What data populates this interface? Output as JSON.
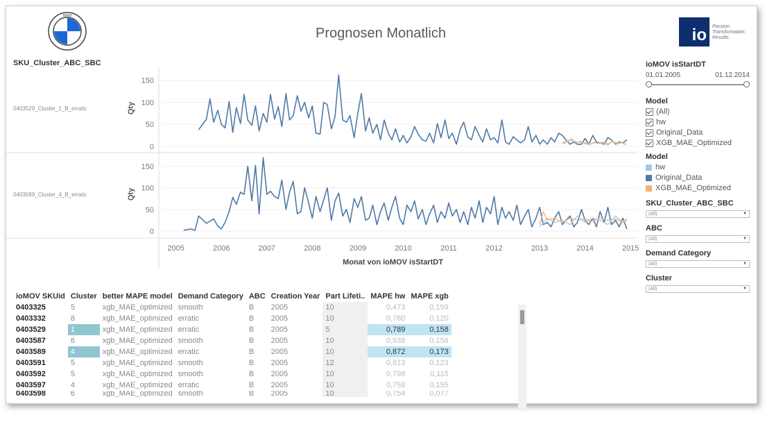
{
  "header": {
    "title": "Prognosen Monatlich"
  },
  "logos": {
    "bmw": "BMW",
    "io": "io",
    "io_tagline": [
      "Passion.",
      "Transformation.",
      "Results."
    ]
  },
  "chart_section": {
    "dimension_header": "SKU_Cluster_ABC_SBC",
    "ylabel": "Qty",
    "xlabel": "Monat von ioMOV isStartDT",
    "x_ticks": [
      "2005",
      "2006",
      "2007",
      "2008",
      "2009",
      "2010",
      "2011",
      "2012",
      "2013",
      "2014",
      "2015"
    ],
    "y_ticks": [
      "150",
      "100",
      "50",
      "0"
    ]
  },
  "chart_data": [
    {
      "type": "line",
      "row_label": "0403529_Cluster_1_B_erratic",
      "xlabel": "Monat von ioMOV isStartDT",
      "ylabel": "Qty",
      "ylim": [
        0,
        170
      ],
      "series": [
        {
          "name": "Original_Data",
          "color": "#4e79a7",
          "x": [
            2005.5,
            2005.67,
            2005.75,
            2005.83,
            2005.92,
            2006.0,
            2006.08,
            2006.17,
            2006.25,
            2006.33,
            2006.42,
            2006.5,
            2006.58,
            2006.67,
            2006.75,
            2006.83,
            2006.92,
            2007.0,
            2007.08,
            2007.17,
            2007.25,
            2007.33,
            2007.42,
            2007.5,
            2007.58,
            2007.67,
            2007.75,
            2007.83,
            2007.92,
            2008.0,
            2008.08,
            2008.17,
            2008.25,
            2008.33,
            2008.42,
            2008.5,
            2008.58,
            2008.67,
            2008.75,
            2008.83,
            2008.92,
            2009.0,
            2009.08,
            2009.17,
            2009.25,
            2009.33,
            2009.42,
            2009.5,
            2009.58,
            2009.67,
            2009.75,
            2009.83,
            2009.92,
            2010.0,
            2010.08,
            2010.17,
            2010.25,
            2010.33,
            2010.42,
            2010.5,
            2010.58,
            2010.67,
            2010.75,
            2010.83,
            2010.92,
            2011.0,
            2011.08,
            2011.17,
            2011.25,
            2011.33,
            2011.42,
            2011.5,
            2011.58,
            2011.67,
            2011.75,
            2011.83,
            2011.92,
            2012.0,
            2012.08,
            2012.17,
            2012.25,
            2012.33,
            2012.42,
            2012.5,
            2012.58,
            2012.67,
            2012.75,
            2012.83,
            2012.92,
            2013.0,
            2013.08,
            2013.17,
            2013.25,
            2013.33,
            2013.42,
            2013.5,
            2013.58,
            2013.67,
            2013.75,
            2013.83,
            2013.92,
            2014.0,
            2014.08,
            2014.17,
            2014.25,
            2014.33,
            2014.42,
            2014.5,
            2014.58,
            2014.67,
            2014.75,
            2014.83,
            2014.92
          ],
          "values": [
            38,
            62,
            108,
            55,
            82,
            50,
            42,
            102,
            32,
            88,
            52,
            118,
            60,
            48,
            92,
            35,
            75,
            55,
            118,
            62,
            90,
            45,
            120,
            60,
            70,
            115,
            80,
            100,
            65,
            92,
            30,
            28,
            100,
            95,
            40,
            68,
            162,
            60,
            55,
            70,
            20,
            75,
            120,
            35,
            65,
            30,
            50,
            15,
            60,
            30,
            15,
            40,
            10,
            25,
            8,
            22,
            45,
            28,
            15,
            12,
            30,
            8,
            52,
            20,
            60,
            18,
            30,
            5,
            38,
            55,
            22,
            15,
            45,
            25,
            10,
            40,
            15,
            20,
            8,
            60,
            10,
            5,
            22,
            15,
            8,
            15,
            45,
            10,
            25,
            5,
            15,
            5,
            20,
            10,
            30,
            25,
            15,
            5,
            10,
            5,
            5,
            18,
            5,
            25,
            10,
            8,
            5,
            20,
            15,
            5,
            10,
            8,
            15
          ]
        },
        {
          "name": "hw",
          "color": "#a0cbe8",
          "x": [
            2013.5,
            2013.6,
            2013.7,
            2013.8,
            2013.9,
            2014.0,
            2014.1,
            2014.2,
            2014.3,
            2014.4,
            2014.5,
            2014.6,
            2014.7,
            2014.8,
            2014.9
          ],
          "values": [
            5,
            10,
            18,
            8,
            12,
            6,
            4,
            10,
            6,
            8,
            3,
            12,
            5,
            9,
            4
          ]
        },
        {
          "name": "XGB_MAE_Optimized",
          "color": "#f5b06b",
          "x": [
            2013.5,
            2013.6,
            2013.7,
            2013.8,
            2013.9,
            2014.0,
            2014.1,
            2014.2,
            2014.3,
            2014.4,
            2014.5,
            2014.6,
            2014.7,
            2014.8,
            2014.9
          ],
          "values": [
            8,
            12,
            15,
            10,
            10,
            8,
            6,
            8,
            8,
            10,
            6,
            10,
            8,
            8,
            6
          ]
        }
      ]
    },
    {
      "type": "line",
      "row_label": "0403589_Cluster_4_B_erratic",
      "xlabel": "Monat von ioMOV isStartDT",
      "ylabel": "Qty",
      "ylim": [
        0,
        170
      ],
      "series": [
        {
          "name": "Original_Data",
          "color": "#4e79a7",
          "x": [
            2005.17,
            2005.33,
            2005.42,
            2005.5,
            2005.67,
            2005.83,
            2005.92,
            2006.0,
            2006.08,
            2006.17,
            2006.25,
            2006.33,
            2006.42,
            2006.5,
            2006.58,
            2006.67,
            2006.75,
            2006.83,
            2006.92,
            2007.0,
            2007.08,
            2007.17,
            2007.25,
            2007.33,
            2007.42,
            2007.5,
            2007.58,
            2007.67,
            2007.75,
            2007.83,
            2007.92,
            2008.0,
            2008.08,
            2008.17,
            2008.25,
            2008.33,
            2008.42,
            2008.5,
            2008.58,
            2008.67,
            2008.75,
            2008.83,
            2008.92,
            2009.0,
            2009.08,
            2009.17,
            2009.25,
            2009.33,
            2009.42,
            2009.5,
            2009.58,
            2009.67,
            2009.75,
            2009.83,
            2009.92,
            2010.0,
            2010.08,
            2010.17,
            2010.25,
            2010.33,
            2010.42,
            2010.5,
            2010.58,
            2010.67,
            2010.75,
            2010.83,
            2010.92,
            2011.0,
            2011.08,
            2011.17,
            2011.25,
            2011.33,
            2011.42,
            2011.5,
            2011.58,
            2011.67,
            2011.75,
            2011.83,
            2011.92,
            2012.0,
            2012.08,
            2012.17,
            2012.25,
            2012.33,
            2012.42,
            2012.5,
            2012.58,
            2012.67,
            2012.75,
            2012.83,
            2012.92,
            2013.0,
            2013.08,
            2013.17,
            2013.25,
            2013.33,
            2013.42,
            2013.5,
            2013.58,
            2013.67,
            2013.75,
            2013.83,
            2013.92,
            2014.0,
            2014.08,
            2014.17,
            2014.25,
            2014.33,
            2014.42,
            2014.5,
            2014.58,
            2014.67,
            2014.75,
            2014.83,
            2014.92
          ],
          "values": [
            2,
            5,
            2,
            35,
            18,
            28,
            12,
            5,
            20,
            45,
            78,
            62,
            90,
            85,
            150,
            70,
            152,
            40,
            170,
            85,
            92,
            80,
            75,
            118,
            50,
            90,
            115,
            40,
            45,
            100,
            65,
            30,
            80,
            45,
            72,
            100,
            25,
            70,
            88,
            35,
            50,
            20,
            75,
            55,
            80,
            25,
            30,
            60,
            15,
            45,
            65,
            25,
            55,
            80,
            30,
            15,
            60,
            45,
            70,
            28,
            50,
            15,
            40,
            60,
            20,
            45,
            30,
            65,
            35,
            50,
            20,
            45,
            15,
            55,
            30,
            70,
            20,
            55,
            40,
            80,
            15,
            55,
            30,
            45,
            25,
            60,
            15,
            35,
            50,
            10,
            30,
            55,
            15,
            20,
            10,
            30,
            45,
            15,
            25,
            35,
            10,
            20,
            50,
            25,
            15,
            30,
            10,
            45,
            20,
            55,
            15,
            25,
            10,
            30,
            5
          ]
        },
        {
          "name": "hw",
          "color": "#a0cbe8",
          "x": [
            2013.0,
            2013.17,
            2013.33,
            2013.5,
            2013.67,
            2013.83,
            2014.0,
            2014.17,
            2014.33,
            2014.5,
            2014.67,
            2014.83,
            2014.92
          ],
          "values": [
            10,
            30,
            20,
            25,
            15,
            35,
            20,
            30,
            25,
            15,
            35,
            20,
            30
          ]
        },
        {
          "name": "XGB_MAE_Optimized",
          "color": "#f5b06b",
          "x": [
            2013.0,
            2013.08,
            2013.17,
            2013.33,
            2013.5,
            2013.67,
            2013.83,
            2014.0,
            2014.17,
            2014.33,
            2014.5,
            2014.67,
            2014.83,
            2014.92
          ],
          "values": [
            15,
            45,
            25,
            30,
            20,
            30,
            25,
            28,
            22,
            30,
            25,
            28,
            20,
            25
          ]
        }
      ]
    }
  ],
  "sidebar": {
    "date_filter": {
      "label": "ioMOV isStartDT",
      "start": "01.01.2005",
      "end": "01.12.2014"
    },
    "model_filter": {
      "label": "Model",
      "items": [
        "(All)",
        "hw",
        "Original_Data",
        "XGB_MAE_Optimized"
      ]
    },
    "model_legend": {
      "label": "Model",
      "items": [
        {
          "name": "hw",
          "color": "#a0cbe8"
        },
        {
          "name": "Original_Data",
          "color": "#4e79a7"
        },
        {
          "name": "XGB_MAE_Optimized",
          "color": "#f5b06b"
        }
      ]
    },
    "dropdowns": [
      {
        "label": "SKU_Cluster_ABC_SBC",
        "value": "(All)"
      },
      {
        "label": "ABC",
        "value": "(All)"
      },
      {
        "label": "Demand Category",
        "value": "(All)"
      },
      {
        "label": "Cluster",
        "value": "(All)"
      }
    ]
  },
  "table": {
    "columns": [
      "ioMOV SKUid",
      "Cluster",
      "better MAPE model",
      "Demand Category",
      "ABC",
      "Creation Year",
      "Part Lifeti..",
      "MAPE hw",
      "MAPE xgb"
    ],
    "rows": [
      [
        "0403325",
        "5",
        "xgb_MAE_optimized",
        "smooth",
        "B",
        "2005",
        "10",
        "0,473",
        "0,159"
      ],
      [
        "0403332",
        "8",
        "xgb_MAE_optimized",
        "erratic",
        "B",
        "2005",
        "10",
        "0,780",
        "0,120"
      ],
      [
        "0403529",
        "1",
        "xgb_MAE_optimized",
        "erratic",
        "B",
        "2005",
        "5",
        "0,789",
        "0,158"
      ],
      [
        "0403587",
        "6",
        "xgb_MAE_optimized",
        "smooth",
        "B",
        "2005",
        "10",
        "0,938",
        "0,156"
      ],
      [
        "0403589",
        "4",
        "xgb_MAE_optimized",
        "erratic",
        "B",
        "2005",
        "10",
        "0,872",
        "0,173"
      ],
      [
        "0403591",
        "5",
        "xgb_MAE_optimized",
        "smooth",
        "B",
        "2005",
        "12",
        "0,813",
        "0,123"
      ],
      [
        "0403592",
        "5",
        "xgb_MAE_optimized",
        "smooth",
        "B",
        "2005",
        "10",
        "0,798",
        "0,115"
      ],
      [
        "0403597",
        "4",
        "xgb_MAE_optimized",
        "erratic",
        "B",
        "2005",
        "10",
        "0,758",
        "0,155"
      ],
      [
        "0403598",
        "6",
        "xgb_MAE_optimized",
        "smooth",
        "B",
        "2005",
        "10",
        "0,754",
        "0,077"
      ]
    ],
    "highlighted_rows": [
      2,
      4
    ]
  }
}
